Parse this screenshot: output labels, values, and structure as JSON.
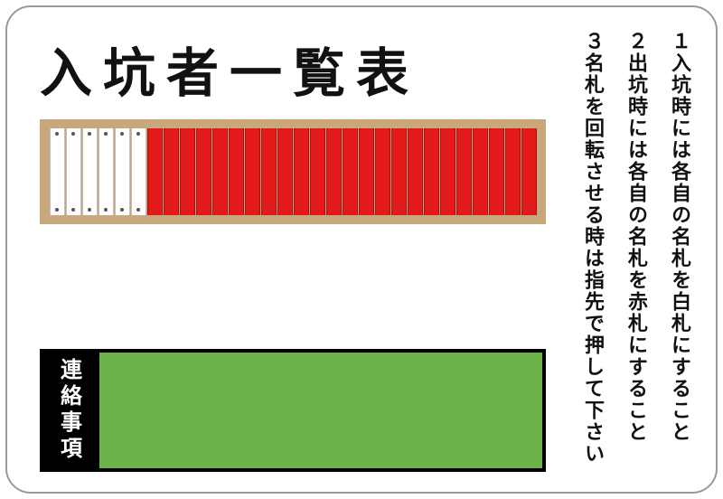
{
  "title": "入坑者一覧表",
  "rack": {
    "total_tags": 30,
    "white_tags": 6,
    "red_tags": 24,
    "frame_color": "#c8a87a",
    "white_color": "#ffffff",
    "red_color": "#e21a1a"
  },
  "green_panel": {
    "label": "連絡事項",
    "label_bg": "#000000",
    "label_text_color": "#ffffff",
    "fill_color": "#6eb24a",
    "border_color": "#000000"
  },
  "instructions": [
    "１入坑時には各自の名札を白札にすること",
    "２出坑時には各自の名札を赤札にすること",
    "３名札を回転させる時は指先で押して下さい"
  ],
  "board": {
    "bg": "#ffffff",
    "border_color": "#999999",
    "border_radius": 28
  }
}
